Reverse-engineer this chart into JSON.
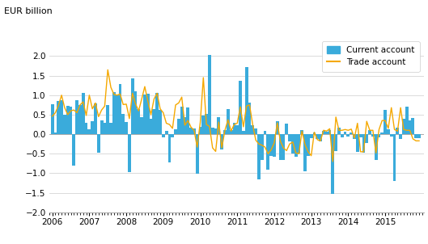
{
  "ylabel": "EUR billion",
  "bar_color": "#3aabdb",
  "line_color": "#f5a800",
  "ylim": [
    -2.0,
    2.5
  ],
  "yticks": [
    -2.0,
    -1.5,
    -1.0,
    -0.5,
    0.0,
    0.5,
    1.0,
    1.5,
    2.0
  ],
  "start_year": 2006,
  "n_months": 120,
  "legend_bar_label": "Current account",
  "legend_line_label": "Trade account",
  "current_account": [
    0.77,
    0.04,
    0.85,
    0.87,
    0.5,
    0.72,
    0.7,
    -0.8,
    0.88,
    0.75,
    1.06,
    0.3,
    0.12,
    0.33,
    0.79,
    -0.47,
    0.35,
    0.29,
    0.75,
    0.3,
    1.08,
    1.01,
    1.29,
    0.51,
    0.32,
    -0.97,
    1.44,
    1.09,
    0.64,
    0.44,
    1.01,
    1.03,
    0.39,
    0.65,
    1.06,
    0.63,
    -0.08,
    0.09,
    -0.73,
    -0.09,
    0.13,
    0.4,
    0.7,
    0.43,
    0.69,
    0.17,
    0.15,
    -1.01,
    0.18,
    0.47,
    0.51,
    2.03,
    0.16,
    0.15,
    0.44,
    -0.4,
    0.11,
    0.64,
    0.1,
    0.29,
    0.22,
    1.36,
    0.08,
    1.73,
    0.8,
    0.23,
    0.14,
    -1.16,
    -0.67,
    0.08,
    -0.9,
    -0.55,
    -0.57,
    0.34,
    -0.67,
    -0.65,
    0.27,
    -0.19,
    -0.49,
    -0.57,
    -0.49,
    0.1,
    -0.95,
    -0.55,
    -0.1,
    0.05,
    -0.13,
    -0.19,
    0.08,
    0.06,
    0.1,
    -1.53,
    -0.43,
    0.16,
    -0.08,
    0.06,
    -0.06,
    0.05,
    -0.13,
    -0.46,
    -0.08,
    -0.47,
    -0.22,
    0.1,
    -0.07,
    -0.65,
    -0.09,
    0.05,
    0.62,
    0.13,
    -0.06,
    -1.19,
    0.16,
    -0.12,
    0.4,
    0.71,
    0.35,
    0.42,
    -0.11,
    -0.11
  ],
  "trade_account": [
    0.46,
    0.55,
    0.74,
    1.0,
    0.68,
    0.5,
    0.6,
    0.62,
    0.55,
    0.75,
    0.83,
    0.48,
    1.0,
    0.65,
    0.8,
    0.45,
    0.62,
    0.72,
    1.65,
    1.2,
    1.02,
    1.0,
    1.03,
    0.76,
    0.77,
    0.4,
    1.05,
    0.78,
    0.6,
    0.9,
    1.22,
    0.85,
    0.5,
    0.9,
    1.05,
    0.65,
    0.55,
    0.28,
    0.25,
    0.15,
    0.75,
    0.8,
    0.95,
    0.23,
    0.35,
    0.18,
    0.1,
    -0.33,
    0.3,
    1.45,
    0.25,
    0.2,
    -0.35,
    -0.44,
    0.31,
    -0.35,
    0.1,
    0.37,
    0.08,
    0.25,
    0.28,
    0.7,
    0.19,
    0.72,
    0.75,
    0.25,
    -0.15,
    -0.25,
    -0.28,
    -0.33,
    -0.5,
    -0.4,
    -0.22,
    0.29,
    -0.18,
    -0.35,
    -0.42,
    -0.25,
    -0.2,
    -0.48,
    -0.5,
    0.08,
    -0.27,
    -0.45,
    -0.55,
    0.05,
    -0.14,
    -0.17,
    0.1,
    0.08,
    0.14,
    -0.7,
    0.44,
    0.1,
    0.1,
    0.12,
    0.1,
    0.13,
    -0.1,
    0.28,
    -0.45,
    -0.45,
    0.33,
    0.1,
    0.1,
    -0.48,
    0.12,
    0.35,
    0.35,
    0.15,
    0.68,
    0.12,
    0.08,
    0.68,
    0.12,
    0.1,
    0.1,
    -0.12,
    -0.17,
    -0.17
  ]
}
